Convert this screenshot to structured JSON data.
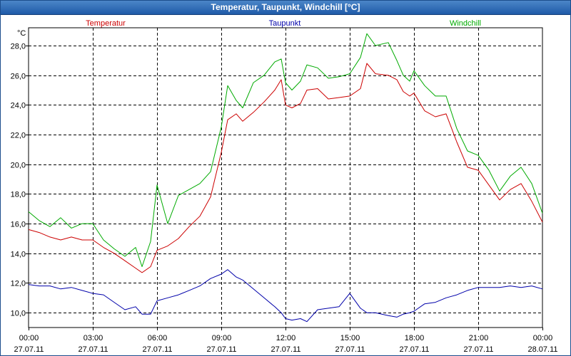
{
  "chart_data": {
    "type": "line",
    "title": "Temperatur, Taupunkt, Windchill [°C]",
    "ylabel": "°C",
    "ylim": [
      9,
      29.2
    ],
    "ytick_labels": [
      "10,0",
      "12,0",
      "14,0",
      "16,0",
      "18,0",
      "20,0",
      "22,0",
      "24,0",
      "26,0",
      "28,0"
    ],
    "ytick_values": [
      10,
      12,
      14,
      16,
      18,
      20,
      22,
      24,
      26,
      28
    ],
    "xlim": [
      0,
      24
    ],
    "xtick_values": [
      0,
      3,
      6,
      9,
      12,
      15,
      18,
      21,
      24
    ],
    "xtick_time_labels": [
      "00:00",
      "03:00",
      "06:00",
      "09:00",
      "12:00",
      "15:00",
      "18:00",
      "21:00",
      "00:00"
    ],
    "xtick_date_labels": [
      "27.07.11",
      "27.07.11",
      "27.07.11",
      "27.07.11",
      "27.07.11",
      "27.07.11",
      "27.07.11",
      "27.07.11",
      "28.07.11"
    ],
    "grid": true,
    "legend_position": "top",
    "series": [
      {
        "name": "Temperatur",
        "color": "#cc0000",
        "points": [
          [
            0,
            15.6
          ],
          [
            0.5,
            15.4
          ],
          [
            1,
            15.1
          ],
          [
            1.5,
            14.9
          ],
          [
            2,
            15.1
          ],
          [
            2.5,
            14.9
          ],
          [
            3,
            14.9
          ],
          [
            3.5,
            14.4
          ],
          [
            4,
            14.0
          ],
          [
            4.5,
            13.5
          ],
          [
            5,
            13.0
          ],
          [
            5.3,
            12.7
          ],
          [
            5.7,
            13.1
          ],
          [
            6,
            14.2
          ],
          [
            6.5,
            14.5
          ],
          [
            7,
            15.0
          ],
          [
            7.5,
            15.8
          ],
          [
            8,
            16.5
          ],
          [
            8.5,
            17.8
          ],
          [
            9,
            20.8
          ],
          [
            9.3,
            23.0
          ],
          [
            9.7,
            23.4
          ],
          [
            10,
            22.9
          ],
          [
            10.5,
            23.5
          ],
          [
            11,
            24.2
          ],
          [
            11.5,
            25.0
          ],
          [
            11.8,
            25.7
          ],
          [
            12,
            24.0
          ],
          [
            12.3,
            23.8
          ],
          [
            12.7,
            24.1
          ],
          [
            13,
            25.0
          ],
          [
            13.5,
            25.1
          ],
          [
            14,
            24.4
          ],
          [
            14.5,
            24.5
          ],
          [
            15,
            24.6
          ],
          [
            15.5,
            25.1
          ],
          [
            15.8,
            26.8
          ],
          [
            16.2,
            26.1
          ],
          [
            16.8,
            26.0
          ],
          [
            17.2,
            25.7
          ],
          [
            17.5,
            24.9
          ],
          [
            17.8,
            24.6
          ],
          [
            18,
            24.8
          ],
          [
            18.5,
            23.6
          ],
          [
            19,
            23.2
          ],
          [
            19.5,
            23.4
          ],
          [
            20,
            21.5
          ],
          [
            20.5,
            19.8
          ],
          [
            21,
            19.6
          ],
          [
            21.5,
            18.6
          ],
          [
            22,
            17.6
          ],
          [
            22.5,
            18.3
          ],
          [
            23,
            18.7
          ],
          [
            23.5,
            17.5
          ],
          [
            24,
            16.1
          ]
        ]
      },
      {
        "name": "Taupunkt",
        "color": "#0000aa",
        "points": [
          [
            0,
            11.9
          ],
          [
            0.5,
            11.8
          ],
          [
            1,
            11.8
          ],
          [
            1.5,
            11.6
          ],
          [
            2,
            11.7
          ],
          [
            2.5,
            11.5
          ],
          [
            3,
            11.3
          ],
          [
            3.5,
            11.2
          ],
          [
            4,
            10.7
          ],
          [
            4.5,
            10.2
          ],
          [
            5,
            10.4
          ],
          [
            5.3,
            9.9
          ],
          [
            5.7,
            9.9
          ],
          [
            6,
            10.8
          ],
          [
            6.5,
            11.0
          ],
          [
            7,
            11.2
          ],
          [
            7.5,
            11.5
          ],
          [
            8,
            11.8
          ],
          [
            8.5,
            12.3
          ],
          [
            9,
            12.6
          ],
          [
            9.3,
            12.9
          ],
          [
            9.7,
            12.4
          ],
          [
            10,
            12.2
          ],
          [
            10.5,
            11.6
          ],
          [
            11,
            11.0
          ],
          [
            11.5,
            10.4
          ],
          [
            11.8,
            10.0
          ],
          [
            12,
            9.6
          ],
          [
            12.3,
            9.5
          ],
          [
            12.7,
            9.6
          ],
          [
            13,
            9.4
          ],
          [
            13.5,
            10.2
          ],
          [
            14,
            10.3
          ],
          [
            14.5,
            10.4
          ],
          [
            15,
            11.3
          ],
          [
            15.5,
            10.3
          ],
          [
            15.8,
            10.0
          ],
          [
            16.2,
            10.0
          ],
          [
            16.8,
            9.8
          ],
          [
            17.2,
            9.7
          ],
          [
            17.5,
            9.9
          ],
          [
            17.8,
            10.0
          ],
          [
            18,
            10.1
          ],
          [
            18.5,
            10.6
          ],
          [
            19,
            10.7
          ],
          [
            19.5,
            11.0
          ],
          [
            20,
            11.2
          ],
          [
            20.5,
            11.5
          ],
          [
            21,
            11.7
          ],
          [
            21.5,
            11.7
          ],
          [
            22,
            11.7
          ],
          [
            22.5,
            11.8
          ],
          [
            23,
            11.7
          ],
          [
            23.5,
            11.8
          ],
          [
            24,
            11.6
          ]
        ]
      },
      {
        "name": "Windchill",
        "color": "#00aa00",
        "points": [
          [
            0,
            16.8
          ],
          [
            0.5,
            16.2
          ],
          [
            1,
            15.8
          ],
          [
            1.5,
            16.4
          ],
          [
            2,
            15.7
          ],
          [
            2.5,
            16.0
          ],
          [
            3,
            16.0
          ],
          [
            3.5,
            14.9
          ],
          [
            4,
            14.3
          ],
          [
            4.5,
            13.8
          ],
          [
            5,
            14.4
          ],
          [
            5.3,
            13.1
          ],
          [
            5.7,
            14.8
          ],
          [
            6,
            18.6
          ],
          [
            6.5,
            16.0
          ],
          [
            7,
            17.9
          ],
          [
            7.5,
            18.3
          ],
          [
            8,
            18.7
          ],
          [
            8.5,
            19.5
          ],
          [
            9,
            22.5
          ],
          [
            9.3,
            25.3
          ],
          [
            9.7,
            24.3
          ],
          [
            10,
            23.8
          ],
          [
            10.5,
            25.5
          ],
          [
            11,
            26.0
          ],
          [
            11.5,
            26.9
          ],
          [
            11.8,
            27.1
          ],
          [
            12,
            25.5
          ],
          [
            12.3,
            25.0
          ],
          [
            12.7,
            25.6
          ],
          [
            13,
            26.7
          ],
          [
            13.5,
            26.5
          ],
          [
            14,
            25.8
          ],
          [
            14.5,
            25.9
          ],
          [
            15,
            26.1
          ],
          [
            15.5,
            27.2
          ],
          [
            15.8,
            28.8
          ],
          [
            16.2,
            28.0
          ],
          [
            16.8,
            28.2
          ],
          [
            17.2,
            27.0
          ],
          [
            17.5,
            26.0
          ],
          [
            17.8,
            25.6
          ],
          [
            18,
            26.3
          ],
          [
            18.5,
            25.3
          ],
          [
            19,
            24.6
          ],
          [
            19.5,
            24.6
          ],
          [
            20,
            22.4
          ],
          [
            20.5,
            20.9
          ],
          [
            21,
            20.6
          ],
          [
            21.5,
            19.6
          ],
          [
            22,
            18.2
          ],
          [
            22.5,
            19.2
          ],
          [
            23,
            19.8
          ],
          [
            23.5,
            18.7
          ],
          [
            24,
            16.7
          ]
        ]
      }
    ]
  }
}
